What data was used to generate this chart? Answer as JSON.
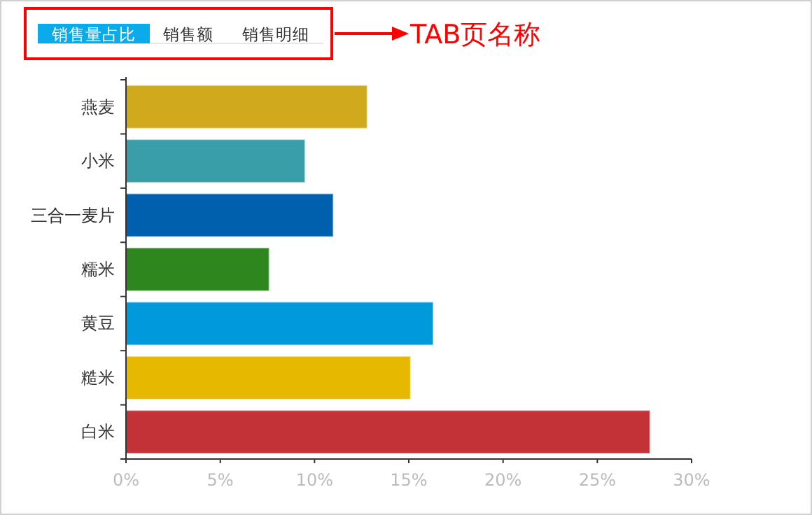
{
  "chart_data": {
    "type": "bar",
    "orientation": "horizontal",
    "categories": [
      "燕麦",
      "小米",
      "三合一麦片",
      "糯米",
      "黄豆",
      "糙米",
      "白米"
    ],
    "values": [
      12.8,
      9.5,
      11.0,
      7.6,
      16.3,
      15.1,
      27.8
    ],
    "colors": [
      "#d0a91c",
      "#3a9ea9",
      "#0060ad",
      "#2e861e",
      "#0099dc",
      "#e6b800",
      "#c33237"
    ],
    "xlim": [
      0,
      30
    ],
    "xticks": [
      {
        "value": 0,
        "label": "0%"
      },
      {
        "value": 5,
        "label": "5%"
      },
      {
        "value": 10,
        "label": "10%"
      },
      {
        "value": 15,
        "label": "15%"
      },
      {
        "value": 20,
        "label": "20%"
      },
      {
        "value": 25,
        "label": "25%"
      },
      {
        "value": 30,
        "label": "30%"
      }
    ],
    "annotations": [
      "销售量占比",
      "销售额",
      "销售明细",
      "TAB页名称"
    ]
  }
}
